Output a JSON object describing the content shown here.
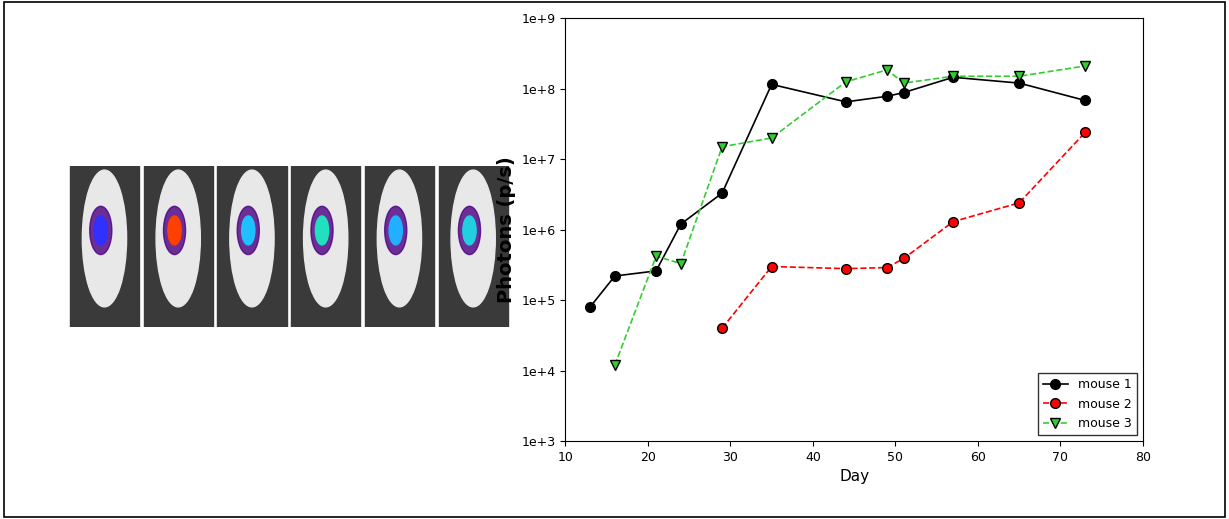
{
  "chart_data": {
    "type": "line",
    "x_label": "Day",
    "y_label": "Photons (p/s)",
    "log": "y",
    "xlim": [
      10,
      80
    ],
    "xticks": [
      10,
      20,
      30,
      40,
      50,
      60,
      70,
      80
    ],
    "ylim": [
      1000,
      1000000000
    ],
    "yticks": [
      {
        "value": 1000,
        "label": "1e+3"
      },
      {
        "value": 10000,
        "label": "1e+4"
      },
      {
        "value": 100000,
        "label": "1e+5"
      },
      {
        "value": 1000000,
        "label": "1e+6"
      },
      {
        "value": 10000000,
        "label": "1e+7"
      },
      {
        "value": 100000000,
        "label": "1e+8"
      },
      {
        "value": 1000000000,
        "label": "1e+9"
      }
    ],
    "legend": "lower right",
    "series": [
      {
        "name": "mouse 1",
        "color": "#000000",
        "marker": "o",
        "line_style": "solid",
        "x": [
          13,
          16,
          21,
          24,
          29,
          35,
          44,
          49,
          51,
          57,
          65,
          73
        ],
        "values": [
          80000,
          220000,
          260000,
          1200000,
          3300000,
          115000000,
          65000000,
          78000000,
          88000000,
          145000000,
          120000000,
          68000000
        ]
      },
      {
        "name": "mouse 2",
        "color": "#ff0000",
        "marker": "o",
        "line_style": "dashed",
        "x": [
          29,
          35,
          44,
          49,
          51,
          57,
          65,
          73
        ],
        "values": [
          40000,
          300000,
          280000,
          290000,
          390000,
          1300000,
          2400000,
          24000000
        ]
      },
      {
        "name": "mouse 3",
        "color": "#33cc33",
        "marker": "v",
        "line_style": "dashed",
        "x": [
          16,
          21,
          24,
          29,
          35,
          44,
          49,
          51,
          57,
          65,
          73
        ],
        "values": [
          12000,
          420000,
          330000,
          15000000,
          20000000,
          125000000,
          185000000,
          120000000,
          150000000,
          150000000,
          210000000
        ]
      }
    ]
  }
}
